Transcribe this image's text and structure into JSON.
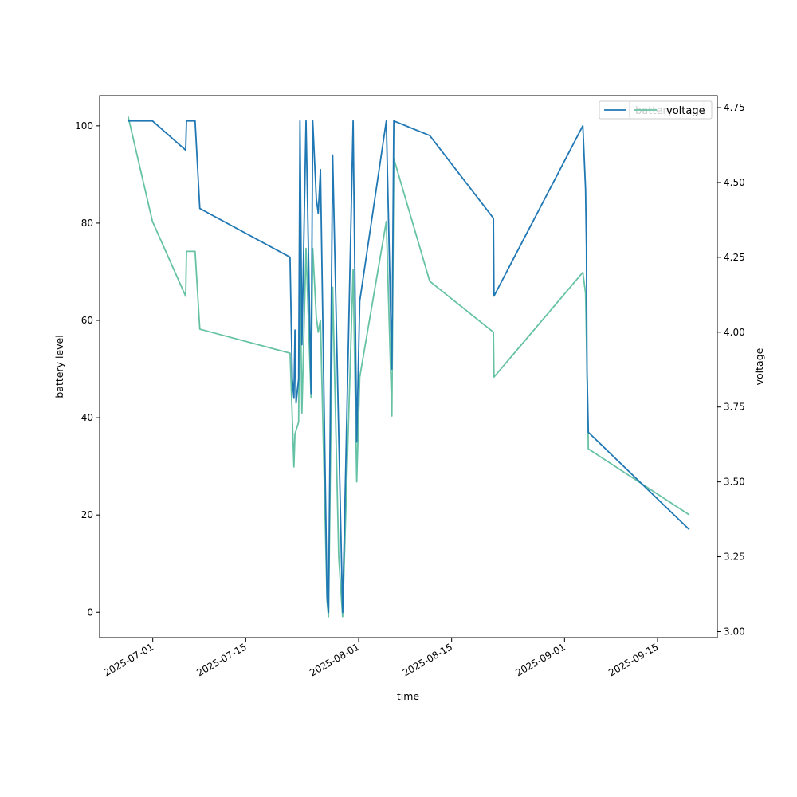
{
  "chart_data": {
    "type": "line",
    "title": "",
    "xlabel": "time",
    "ylabel_left": "battery level",
    "ylabel_right": "voltage",
    "xlim": [
      "2025-06-23",
      "2025-09-24"
    ],
    "ylim_left": [
      -5.2,
      106.2
    ],
    "ylim_right": [
      2.98,
      4.79
    ],
    "x_ticks": [
      "2025-07-01",
      "2025-07-15",
      "2025-08-01",
      "2025-08-15",
      "2025-09-01",
      "2025-09-15"
    ],
    "y_ticks_left": [
      0,
      20,
      40,
      60,
      80,
      100
    ],
    "y_ticks_right": [
      "3.00",
      "3.25",
      "3.50",
      "3.75",
      "4.00",
      "4.25",
      "4.50",
      "4.75"
    ],
    "grid": false,
    "legend_placement": "top-right",
    "legend_entries": [
      "battery",
      "voltage"
    ],
    "series": [
      {
        "name": "battery",
        "axis": "left",
        "color": "#1f77b4",
        "points": [
          [
            "2025-06-27T07:00",
            101
          ],
          [
            "2025-06-30T23:00",
            101
          ],
          [
            "2025-07-05T23:00",
            95
          ],
          [
            "2025-07-06T02:00",
            101
          ],
          [
            "2025-07-07T09:00",
            101
          ],
          [
            "2025-07-08T02:00",
            83
          ],
          [
            "2025-07-21T16:00",
            73
          ],
          [
            "2025-07-22T00:00",
            48
          ],
          [
            "2025-07-22T06:00",
            44
          ],
          [
            "2025-07-22T10:00",
            58
          ],
          [
            "2025-07-22T14:00",
            43
          ],
          [
            "2025-07-22T23:00",
            48
          ],
          [
            "2025-07-23T04:00",
            101
          ],
          [
            "2025-07-23T11:00",
            55
          ],
          [
            "2025-07-24T02:00",
            101
          ],
          [
            "2025-07-24T20:00",
            45
          ],
          [
            "2025-07-25T02:00",
            101
          ],
          [
            "2025-07-25T15:00",
            85
          ],
          [
            "2025-07-25T22:00",
            82
          ],
          [
            "2025-07-26T06:00",
            91
          ],
          [
            "2025-07-27T06:00",
            3
          ],
          [
            "2025-07-27T11:00",
            0
          ],
          [
            "2025-07-28T02:00",
            94
          ],
          [
            "2025-07-29T14:00",
            0
          ],
          [
            "2025-07-31T04:00",
            101
          ],
          [
            "2025-07-31T17:00",
            35
          ],
          [
            "2025-08-01T04:00",
            64
          ],
          [
            "2025-08-05T04:00",
            101
          ],
          [
            "2025-08-06T00:00",
            50
          ],
          [
            "2025-08-06T07:00",
            101
          ],
          [
            "2025-08-11T17:00",
            98
          ],
          [
            "2025-08-21T07:00",
            81
          ],
          [
            "2025-08-21T09:00",
            65
          ],
          [
            "2025-09-03T18:00",
            100
          ],
          [
            "2025-09-04T04:00",
            87
          ],
          [
            "2025-09-04T07:00",
            75
          ],
          [
            "2025-09-04T09:00",
            50
          ],
          [
            "2025-09-04T14:00",
            37
          ],
          [
            "2025-09-19T19:00",
            17
          ]
        ]
      },
      {
        "name": "voltage",
        "axis": "right",
        "color": "#66c2a5",
        "points": [
          [
            "2025-06-27T07:00",
            4.72
          ],
          [
            "2025-06-30T23:00",
            4.37
          ],
          [
            "2025-07-05T23:00",
            4.12
          ],
          [
            "2025-07-06T02:00",
            4.27
          ],
          [
            "2025-07-07T09:00",
            4.27
          ],
          [
            "2025-07-08T02:00",
            4.01
          ],
          [
            "2025-07-21T16:00",
            3.93
          ],
          [
            "2025-07-22T00:00",
            3.72
          ],
          [
            "2025-07-22T06:00",
            3.55
          ],
          [
            "2025-07-22T10:00",
            3.66
          ],
          [
            "2025-07-22T23:00",
            3.7
          ],
          [
            "2025-07-23T04:00",
            4.25
          ],
          [
            "2025-07-23T11:00",
            3.73
          ],
          [
            "2025-07-24T02:00",
            4.28
          ],
          [
            "2025-07-24T20:00",
            3.78
          ],
          [
            "2025-07-25T02:00",
            4.28
          ],
          [
            "2025-07-25T15:00",
            4.05
          ],
          [
            "2025-07-25T22:00",
            4.0
          ],
          [
            "2025-07-26T06:00",
            4.04
          ],
          [
            "2025-07-27T06:00",
            3.1
          ],
          [
            "2025-07-27T11:00",
            3.05
          ],
          [
            "2025-07-28T02:00",
            4.15
          ],
          [
            "2025-07-29T00:00",
            3.25
          ],
          [
            "2025-07-29T14:00",
            3.05
          ],
          [
            "2025-07-31T04:00",
            4.21
          ],
          [
            "2025-07-31T17:00",
            3.5
          ],
          [
            "2025-08-01T04:00",
            3.85
          ],
          [
            "2025-08-05T04:00",
            4.37
          ],
          [
            "2025-08-06T00:00",
            3.72
          ],
          [
            "2025-08-06T07:00",
            4.58
          ],
          [
            "2025-08-11T17:00",
            4.17
          ],
          [
            "2025-08-21T07:00",
            4.0
          ],
          [
            "2025-08-21T09:00",
            3.85
          ],
          [
            "2025-09-03T18:00",
            4.2
          ],
          [
            "2025-09-04T04:00",
            4.13
          ],
          [
            "2025-09-04T07:00",
            3.98
          ],
          [
            "2025-09-04T14:00",
            3.61
          ],
          [
            "2025-09-19T19:00",
            3.39
          ]
        ]
      }
    ]
  }
}
